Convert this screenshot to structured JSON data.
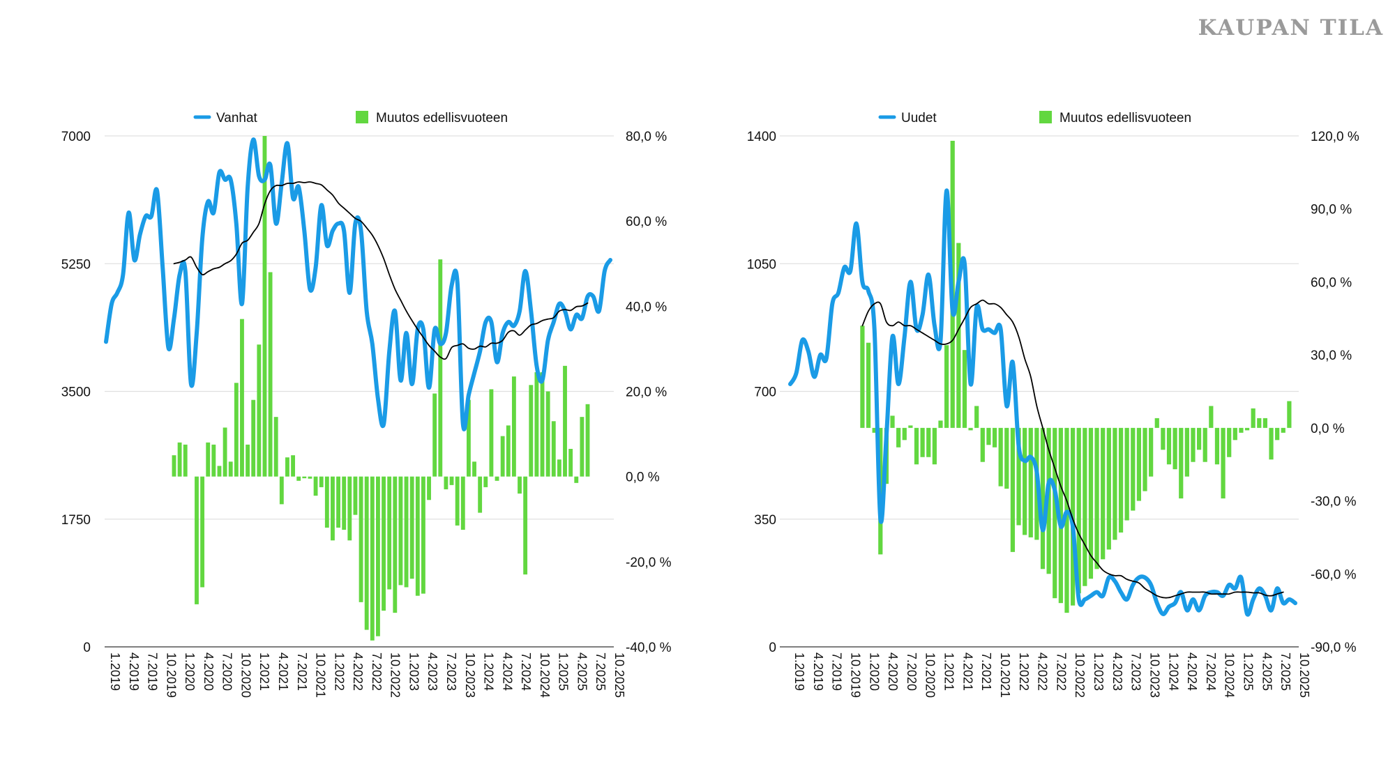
{
  "brand": "KAUPAN TILA",
  "colors": {
    "line": "#1a9be6",
    "bars": "#62d740",
    "trend": "#000000",
    "grid": "#e0e0e0",
    "axis": "#555555"
  },
  "chart_data": [
    {
      "type": "bar+line",
      "title": "",
      "legend": [
        "Vanhat",
        "Muutos edellisvuoteen"
      ],
      "left_axis": {
        "min": 0,
        "max": 7000,
        "ticks": [
          "0",
          "1750",
          "3500",
          "5250",
          "7000"
        ]
      },
      "right_axis": {
        "min": -40,
        "max": 80,
        "ticks": [
          "-40,0 %",
          "-20,0 %",
          "0,0 %",
          "20,0 %",
          "40,0 %",
          "60,0 %",
          "80,0 %"
        ]
      },
      "x_labels": [
        "1.2019",
        "4.2019",
        "7.2019",
        "10.2019",
        "1.2020",
        "4.2020",
        "7.2020",
        "10.2020",
        "1.2021",
        "4.2021",
        "7.2021",
        "10.2021",
        "1.2022",
        "4.2022",
        "7.2022",
        "10.2022",
        "1.2023",
        "4.2023",
        "7.2023",
        "10.2023",
        "1.2024",
        "4.2024",
        "7.2024",
        "10.2024",
        "1.2025",
        "4.2025",
        "7.2025",
        "10.2025"
      ],
      "series": [
        {
          "name": "Vanhat",
          "kind": "line",
          "axis": "left",
          "values": [
            4180,
            4700,
            4850,
            5100,
            5950,
            5300,
            5650,
            5900,
            5900,
            6250,
            5200,
            4100,
            4500,
            5100,
            5150,
            3600,
            4300,
            5600,
            6100,
            5950,
            6500,
            6400,
            6400,
            5800,
            4700,
            6300,
            6950,
            6450,
            6400,
            6600,
            5800,
            6350,
            6900,
            6150,
            6300,
            5700,
            4900,
            5200,
            6050,
            5500,
            5700,
            5800,
            5700,
            4850,
            5800,
            5700,
            4600,
            4150,
            3400,
            3050,
            4050,
            4600,
            3650,
            4300,
            3600,
            4350,
            4350,
            3550,
            4350,
            4150,
            4300,
            4950,
            5000,
            3050,
            3450,
            3750,
            4050,
            4450,
            4450,
            3900,
            4300,
            4450,
            4400,
            4600,
            5150,
            4600,
            3850,
            3650,
            4200,
            4450,
            4700,
            4600,
            4350,
            4550,
            4500,
            4800,
            4800,
            4600,
            5150,
            5300
          ]
        },
        {
          "name": "",
          "kind": "line",
          "axis": "left",
          "start_index": 12,
          "role": "trend",
          "values": [
            5250,
            5270,
            5300,
            5340,
            5200,
            5100,
            5140,
            5180,
            5200,
            5250,
            5290,
            5380,
            5530,
            5570,
            5680,
            5800,
            6070,
            6250,
            6320,
            6320,
            6350,
            6350,
            6370,
            6360,
            6370,
            6350,
            6330,
            6260,
            6190,
            6080,
            6010,
            5940,
            5870,
            5830,
            5740,
            5640,
            5500,
            5320,
            5100,
            4900,
            4750,
            4600,
            4470,
            4350,
            4240,
            4130,
            4050,
            3970,
            3950,
            4100,
            4130,
            4150,
            4090,
            4080,
            4120,
            4110,
            4160,
            4160,
            4200,
            4310,
            4330,
            4270,
            4340,
            4410,
            4430,
            4470,
            4490,
            4510,
            4600,
            4620,
            4610,
            4660,
            4670,
            4710
          ]
        },
        {
          "name": "Muutos edellisvuoteen",
          "kind": "bar",
          "axis": "right",
          "start_index": 12,
          "values": [
            5,
            8,
            7.5,
            null,
            -30,
            -26,
            8,
            7.5,
            2.5,
            11.5,
            3.5,
            22,
            37,
            7.5,
            18,
            31,
            80,
            48,
            14,
            -6.5,
            4.5,
            5,
            -1,
            -0.4,
            -0.5,
            -4.5,
            -2.5,
            -12,
            -15,
            -12,
            -12.5,
            -15,
            -9,
            -29.5,
            -36,
            -38.5,
            -37.5,
            -31.5,
            -26.5,
            -32,
            -25.5,
            -26,
            -24,
            -28,
            -27.5,
            -5.5,
            19.5,
            51,
            -3,
            -2,
            -11.5,
            -12.5,
            18,
            3.5,
            -8.5,
            -2.5,
            20.5,
            -1,
            9.5,
            12,
            23.5,
            -4,
            -23,
            21.5,
            24.5,
            24.5,
            20,
            13,
            4,
            26,
            6.5,
            -1.5,
            14,
            17
          ]
        }
      ]
    },
    {
      "type": "bar+line",
      "title": "",
      "legend": [
        "Uudet",
        "Muutos edellisvuoteen"
      ],
      "left_axis": {
        "min": 0,
        "max": 1400,
        "ticks": [
          "0",
          "350",
          "700",
          "1050",
          "1400"
        ]
      },
      "right_axis": {
        "min": -90,
        "max": 120,
        "ticks": [
          "-90,0 %",
          "-60,0 %",
          "-30,0 %",
          "0,0 %",
          "30,0 %",
          "60,0 %",
          "90,0 %",
          "120,0 %"
        ]
      },
      "x_labels": [
        "1.2019",
        "4.2019",
        "7.2019",
        "10.2019",
        "1.2020",
        "4.2020",
        "7.2020",
        "10.2020",
        "1.2021",
        "4.2021",
        "7.2021",
        "10.2021",
        "1.2022",
        "4.2022",
        "7.2022",
        "10.2022",
        "1.2023",
        "4.2023",
        "7.2023",
        "10.2023",
        "1.2024",
        "4.2024",
        "7.2024",
        "10.2024",
        "1.2025",
        "4.2025",
        "7.2025",
        "10.2025"
      ],
      "series": [
        {
          "name": "Uudet",
          "kind": "line",
          "axis": "left",
          "values": [
            720,
            750,
            840,
            810,
            740,
            800,
            790,
            940,
            970,
            1040,
            1030,
            1160,
            1000,
            975,
            870,
            350,
            580,
            850,
            720,
            850,
            1000,
            870,
            910,
            1020,
            880,
            840,
            1250,
            920,
            1000,
            1050,
            720,
            930,
            870,
            870,
            860,
            870,
            660,
            780,
            550,
            510,
            520,
            480,
            320,
            450,
            430,
            330,
            370,
            330,
            130,
            130,
            140,
            150,
            140,
            190,
            180,
            150,
            130,
            170,
            190,
            190,
            170,
            120,
            90,
            110,
            120,
            150,
            100,
            130,
            100,
            140,
            150,
            150,
            140,
            170,
            160,
            190,
            90,
            130,
            160,
            140,
            100,
            160,
            120,
            130,
            120
          ]
        },
        {
          "name": "",
          "kind": "line",
          "axis": "left",
          "start_index": 12,
          "role": "trend",
          "values": [
            880,
            920,
            940,
            940,
            890,
            880,
            890,
            880,
            880,
            870,
            860,
            850,
            840,
            830,
            830,
            840,
            870,
            900,
            930,
            940,
            950,
            940,
            940,
            930,
            910,
            890,
            850,
            790,
            740,
            660,
            600,
            540,
            490,
            440,
            400,
            350,
            310,
            280,
            250,
            230,
            210,
            200,
            195,
            195,
            185,
            180,
            175,
            160,
            150,
            140,
            135,
            135,
            140,
            145,
            150,
            150,
            150,
            150,
            145,
            145,
            145,
            145,
            150,
            150,
            150,
            148,
            148,
            142,
            140,
            145,
            150
          ]
        },
        {
          "name": "Muutos edellisvuoteen",
          "kind": "bar",
          "axis": "right",
          "start_index": 12,
          "values": [
            42,
            35,
            -2,
            -52,
            -23,
            5,
            -8,
            -5,
            1,
            -15,
            -12,
            -12,
            -15,
            3,
            34,
            118,
            76,
            32,
            -1,
            9,
            -14,
            -7,
            -8,
            -24,
            -25,
            -51,
            -40,
            -44,
            -45,
            -46,
            -58,
            -60,
            -70,
            -72,
            -76,
            -73,
            -68,
            -65,
            -62,
            -58,
            -54,
            -50,
            -46,
            -43,
            -38,
            -34,
            -30,
            -26,
            -20,
            4,
            -9,
            -15,
            -17,
            -29,
            -20,
            -14,
            -9,
            -14,
            9,
            -15,
            -29,
            -12,
            -5,
            -2,
            -1,
            8,
            4,
            4,
            -13,
            -5,
            -2,
            11
          ]
        }
      ]
    }
  ]
}
